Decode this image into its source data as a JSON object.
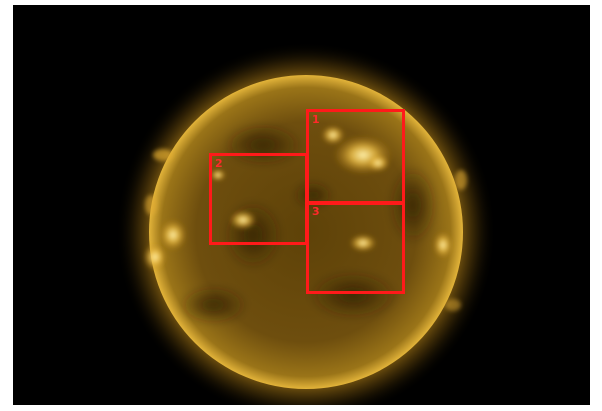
{
  "image": {
    "background_color": "#000000",
    "corona_color": "#e0a020",
    "disk_color": "#6a4a0c"
  },
  "regions": [
    {
      "label": "1",
      "color": "#ff1a1a"
    },
    {
      "label": "2",
      "color": "#ff1a1a"
    },
    {
      "label": "3",
      "color": "#ff1a1a"
    }
  ]
}
